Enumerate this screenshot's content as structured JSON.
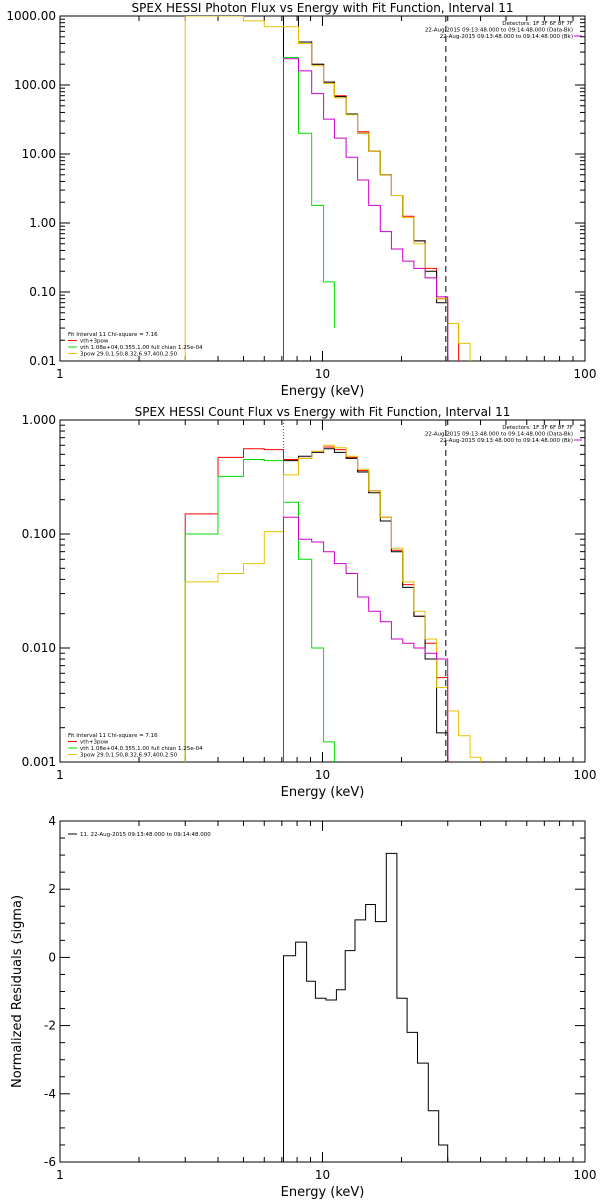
{
  "chart_data": [
    {
      "type": "line",
      "title": "SPEX HESSI Photon Flux vs Energy with Fit Function, Interval 11",
      "xlabel": "Energy (keV)",
      "ylabel": "",
      "xscale": "log",
      "yscale": "log",
      "xlim": [
        1,
        100
      ],
      "ylim": [
        0.01,
        1000
      ],
      "x_ticks": [
        {
          "v": 1,
          "label": "1"
        },
        {
          "v": 10,
          "label": "10"
        },
        {
          "v": 100,
          "label": "100"
        }
      ],
      "y_ticks": [
        {
          "v": 1000,
          "label": "1000.00"
        },
        {
          "v": 100,
          "label": "100.00"
        },
        {
          "v": 10,
          "label": "10.00"
        },
        {
          "v": 1,
          "label": "1.00"
        },
        {
          "v": 0.1,
          "label": "0.10"
        },
        {
          "v": 0.01,
          "label": "0.01"
        }
      ],
      "header_lines": [
        "Detectors: 1F 3F 6F 8F 7F",
        "22-Aug-2015 09:13:48.000 to 09:14:48.000 (Data-Bk)",
        "22-Aug-2015 09:13:48.000 to 09:14:48.000 (Bk)"
      ],
      "legend_position": "bottom-left",
      "legend": [
        {
          "text": "Fit Interval 11    Chi-square = 7.16",
          "color": "#000000",
          "line": false
        },
        {
          "text": "vth+3pow",
          "color": "#ff0000",
          "line": true
        },
        {
          "text": "vth 1.08e+04,0.355,1.00  full chian 1.25e-04",
          "color": "#00dd00",
          "line": true
        },
        {
          "text": "3pow 29.0,1.50,8.32,6.97,400,2.50",
          "color": "#e6c200",
          "line": true
        }
      ],
      "vlines": [
        {
          "x": 7.1,
          "color": "#cc00cc",
          "style": "dotted"
        },
        {
          "x": 29.5,
          "color": "#000000",
          "style": "dashed"
        }
      ],
      "series": [
        {
          "color": "#ff0000",
          "edges": [
            7.1,
            8.1,
            9.1,
            10.1,
            11.1,
            12.3,
            13.6,
            15.0,
            16.6,
            18.3,
            20.2,
            22.3,
            24.6,
            27.2,
            30.0,
            33.0
          ],
          "values": [
            1200,
            420,
            200,
            110,
            70,
            38,
            21,
            11,
            5,
            2.5,
            1.25,
            0.55,
            0.22,
            0.08,
            0.035
          ]
        },
        {
          "color": "#000000",
          "edges": [
            7.1,
            8.1,
            9.1,
            10.1,
            11.1,
            12.3,
            13.6,
            15.0,
            16.6,
            18.3,
            20.2,
            22.3,
            24.6,
            27.2,
            30.0
          ],
          "values": [
            1100,
            420,
            200,
            110,
            68,
            38,
            20,
            11,
            5,
            2.5,
            1.2,
            0.55,
            0.2,
            0.07
          ]
        },
        {
          "color": "#e6c200",
          "edges": [
            3.0,
            5.0,
            6.0,
            7.1,
            8.1,
            9.1,
            10.1,
            11.1,
            12.3,
            13.6,
            15.0,
            16.6,
            18.3,
            20.2,
            22.3,
            24.6,
            27.2,
            30.0,
            33.0,
            36.5
          ],
          "values": [
            1000,
            850,
            700,
            700,
            400,
            190,
            105,
            65,
            37,
            20,
            11,
            5,
            2.5,
            1.2,
            0.5,
            0.16,
            0.08,
            0.035,
            0.018
          ]
        },
        {
          "color": "#00dd00",
          "edges": [
            7.1,
            8.1,
            9.1,
            10.1,
            11.1
          ],
          "values": [
            250,
            20,
            1.8,
            0.14,
            0.03
          ]
        },
        {
          "color": "#cc00cc",
          "edges": [
            7.1,
            8.1,
            9.1,
            10.1,
            11.1,
            12.3,
            13.6,
            15.0,
            16.6,
            18.3,
            20.2,
            22.3,
            24.6,
            27.2,
            30.0
          ],
          "values": [
            240,
            160,
            75,
            32,
            17,
            9,
            4.2,
            1.8,
            0.75,
            0.42,
            0.28,
            0.22,
            0.16,
            0.085
          ]
        }
      ]
    },
    {
      "type": "line",
      "title": "SPEX HESSI Count Flux vs Energy with Fit Function, Interval 11",
      "xlabel": "Energy (keV)",
      "ylabel": "",
      "xscale": "log",
      "yscale": "log",
      "xlim": [
        1,
        100
      ],
      "ylim": [
        0.001,
        1
      ],
      "x_ticks": [
        {
          "v": 1,
          "label": "1"
        },
        {
          "v": 10,
          "label": "10"
        },
        {
          "v": 100,
          "label": "100"
        }
      ],
      "y_ticks": [
        {
          "v": 1,
          "label": "1.000"
        },
        {
          "v": 0.1,
          "label": "0.100"
        },
        {
          "v": 0.01,
          "label": "0.010"
        },
        {
          "v": 0.001,
          "label": "0.001"
        }
      ],
      "header_lines": [
        "Detectors: 1F 3F 6F 8F 7F",
        "22-Aug-2015 09:13:48.000 to 09:14:48.000 (Data-Bk)",
        "22-Aug-2015 09:13:48.000 to 09:14:48.000 (Bk)"
      ],
      "legend_position": "bottom-left",
      "legend": [
        {
          "text": "Fit Interval 11    Chi-square = 7.16",
          "color": "#000000",
          "line": false
        },
        {
          "text": "vth+3pow",
          "color": "#ff0000",
          "line": true
        },
        {
          "text": "vth 1.08e+04,0.355,1.00  full chian 1.25e-04",
          "color": "#00dd00",
          "line": true
        },
        {
          "text": "3pow 29.0,1.50,8.32,6.97,400,2.50",
          "color": "#e6c200",
          "line": true
        }
      ],
      "vlines": [
        {
          "x": 7.1,
          "color": "#cc00cc",
          "style": "dotted"
        },
        {
          "x": 29.5,
          "color": "#000000",
          "style": "dashed"
        }
      ],
      "series": [
        {
          "color": "#ff0000",
          "edges": [
            3.0,
            4.0,
            5.0,
            6.0,
            7.1,
            8.1,
            9.1,
            10.1,
            11.1,
            12.3,
            13.6,
            15.0,
            16.6,
            18.3,
            20.2,
            22.3,
            24.6,
            27.2,
            30.0
          ],
          "values": [
            0.15,
            0.47,
            0.56,
            0.55,
            0.45,
            0.46,
            0.53,
            0.58,
            0.55,
            0.47,
            0.36,
            0.24,
            0.14,
            0.072,
            0.036,
            0.019,
            0.011,
            0.0055
          ]
        },
        {
          "color": "#000000",
          "edges": [
            7.1,
            8.1,
            9.1,
            10.1,
            11.1,
            12.3,
            13.6,
            15.0,
            16.6,
            18.3,
            20.2,
            22.3,
            24.6,
            27.2,
            30.0
          ],
          "values": [
            0.44,
            0.48,
            0.52,
            0.56,
            0.52,
            0.46,
            0.35,
            0.23,
            0.13,
            0.07,
            0.034,
            0.019,
            0.008,
            0.0018
          ]
        },
        {
          "color": "#00dd00",
          "edges": [
            3.0,
            4.0,
            5.0,
            6.0,
            7.1,
            8.1,
            9.1,
            10.1,
            11.1
          ],
          "values": [
            0.1,
            0.32,
            0.45,
            0.44,
            0.19,
            0.06,
            0.01,
            0.0015
          ]
        },
        {
          "color": "#e6c200",
          "edges": [
            3.0,
            4.0,
            5.0,
            6.0,
            7.1,
            8.1,
            9.1,
            10.1,
            11.1,
            12.3,
            13.6,
            15.0,
            16.6,
            18.3,
            20.2,
            22.3,
            24.6,
            27.2,
            30.0,
            33.0,
            36.5,
            40.0
          ],
          "values": [
            0.038,
            0.045,
            0.055,
            0.105,
            0.33,
            0.46,
            0.53,
            0.6,
            0.57,
            0.48,
            0.37,
            0.24,
            0.14,
            0.075,
            0.038,
            0.021,
            0.012,
            0.0045,
            0.0028,
            0.0017,
            0.0011
          ]
        },
        {
          "color": "#cc00cc",
          "edges": [
            7.1,
            8.1,
            9.1,
            10.1,
            11.1,
            12.3,
            13.6,
            15.0,
            16.6,
            18.3,
            20.2,
            22.3,
            24.6,
            27.2,
            30.0
          ],
          "values": [
            0.14,
            0.09,
            0.085,
            0.07,
            0.055,
            0.045,
            0.028,
            0.021,
            0.017,
            0.012,
            0.011,
            0.01,
            0.009,
            0.008
          ]
        }
      ]
    },
    {
      "type": "line",
      "title": "",
      "xlabel": "Energy (keV)",
      "ylabel": "Normalized Residuals (sigma)",
      "xscale": "log",
      "yscale": "linear",
      "xlim": [
        1,
        100
      ],
      "ylim": [
        -6,
        4
      ],
      "x_ticks": [
        {
          "v": 1,
          "label": "1"
        },
        {
          "v": 10,
          "label": "10"
        },
        {
          "v": 100,
          "label": "100"
        }
      ],
      "y_ticks": [
        {
          "v": 4,
          "label": "4"
        },
        {
          "v": 2,
          "label": "2"
        },
        {
          "v": 0,
          "label": "0"
        },
        {
          "v": -2,
          "label": "-2"
        },
        {
          "v": -4,
          "label": "-4"
        },
        {
          "v": -6,
          "label": "-6"
        }
      ],
      "legend_position": "top-left",
      "legend": [
        {
          "text": "11. 22-Aug-2015 09:13:48.000 to 09:14:48.000",
          "color": "#000000",
          "line": true
        }
      ],
      "series": [
        {
          "color": "#000000",
          "edges": [
            7.1,
            7.9,
            8.7,
            9.4,
            10.3,
            11.3,
            12.2,
            13.3,
            14.6,
            15.9,
            17.5,
            19.2,
            21.0,
            23.0,
            25.3,
            27.7,
            30.0
          ],
          "values": [
            0.05,
            0.45,
            -0.7,
            -1.2,
            -1.25,
            -0.95,
            0.2,
            1.1,
            1.55,
            1.05,
            3.05,
            -1.2,
            -2.2,
            -3.1,
            -4.5,
            -5.5
          ]
        }
      ]
    }
  ]
}
